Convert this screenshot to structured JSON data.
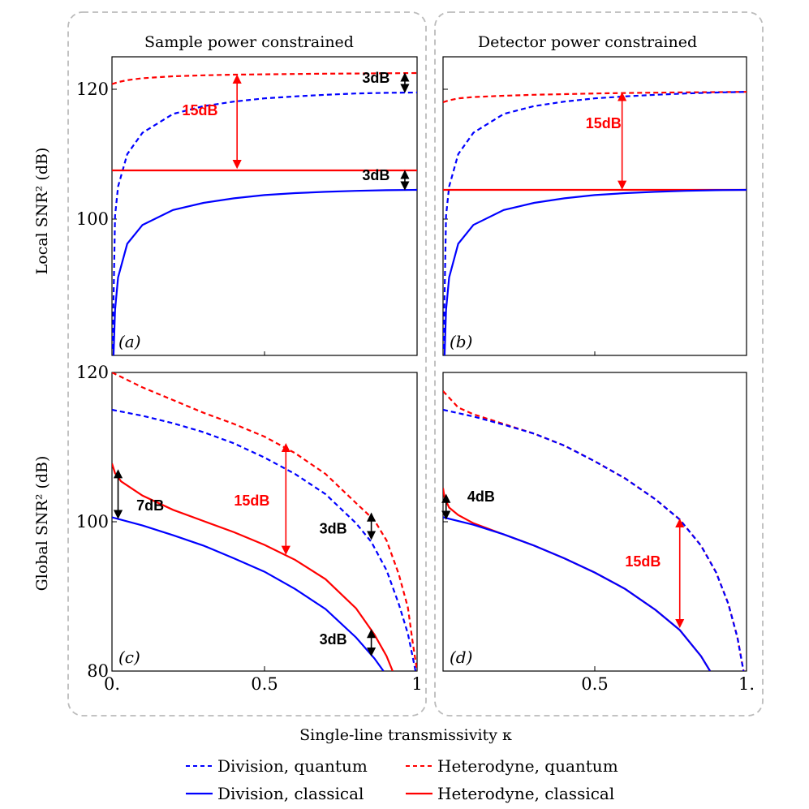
{
  "figure": {
    "column_titles": [
      "Sample power constrained",
      "Detector power constrained"
    ],
    "x_axis_label": "Single-line transmissivity κ",
    "row_labels": [
      "Local  SNR² (dB)",
      "Global  SNR² (dB)"
    ],
    "legend": [
      {
        "label": "Division, quantum",
        "color": "#0000ff",
        "dash": "dashed"
      },
      {
        "label": "Heterodyne, quantum",
        "color": "#ff0000",
        "dash": "dashed"
      },
      {
        "label": "Division, classical",
        "color": "#0000ff",
        "dash": "solid"
      },
      {
        "label": "Heterodyne, classical",
        "color": "#ff0000",
        "dash": "solid"
      }
    ],
    "colors": {
      "division": "#0000ff",
      "heterodyne": "#ff0000",
      "annotation_black": "#000000",
      "frame": "#bbbbbb"
    }
  },
  "chart_data": [
    {
      "panel": "(a)",
      "type": "line",
      "title": "Sample power constrained",
      "ylabel": "Local  SNR² (dB)",
      "xlabel": "",
      "xlim": [
        0,
        1
      ],
      "ylim": [
        79,
        125
      ],
      "xticks": [],
      "yticks": [
        100,
        120
      ],
      "ytick_labels": [
        "100",
        "120"
      ],
      "series": [
        {
          "name": "Heterodyne, quantum",
          "x": [
            0,
            0.02,
            0.05,
            0.1,
            0.2,
            0.3,
            0.4,
            0.5,
            0.6,
            0.7,
            0.8,
            0.9,
            1.0
          ],
          "y": [
            120.8,
            121.1,
            121.4,
            121.7,
            122.0,
            122.15,
            122.25,
            122.3,
            122.35,
            122.4,
            122.43,
            122.46,
            122.5
          ]
        },
        {
          "name": "Division, quantum",
          "x": [
            0.002,
            0.01,
            0.02,
            0.05,
            0.1,
            0.2,
            0.3,
            0.4,
            0.5,
            0.6,
            0.7,
            0.8,
            0.9,
            1.0
          ],
          "y": [
            80,
            100.5,
            105,
            110,
            113.3,
            116.2,
            117.4,
            118.1,
            118.6,
            118.9,
            119.15,
            119.35,
            119.45,
            119.5
          ]
        },
        {
          "name": "Heterodyne, classical",
          "x": [
            0,
            1
          ],
          "y": [
            107.5,
            107.5
          ]
        },
        {
          "name": "Division, classical",
          "x": [
            0.005,
            0.01,
            0.02,
            0.05,
            0.1,
            0.2,
            0.3,
            0.4,
            0.5,
            0.6,
            0.7,
            0.8,
            0.9,
            1.0
          ],
          "y": [
            79,
            86,
            91,
            96.2,
            99.1,
            101.4,
            102.5,
            103.2,
            103.7,
            104.0,
            104.2,
            104.35,
            104.45,
            104.5
          ]
        }
      ],
      "annotations": [
        {
          "text": "3dB",
          "color": "#000000",
          "x_text": 0.82,
          "y_text": 121,
          "arrow_x": 0.96,
          "arrow_y": [
            122.3,
            119.7
          ]
        },
        {
          "text": "15dB",
          "color": "#ff0000",
          "x_text": 0.23,
          "y_text": 116,
          "arrow_x": 0.41,
          "arrow_y": [
            122.0,
            108.0
          ]
        },
        {
          "text": "3dB",
          "color": "#000000",
          "x_text": 0.82,
          "y_text": 106,
          "arrow_x": 0.96,
          "arrow_y": [
            107.3,
            104.7
          ]
        }
      ]
    },
    {
      "panel": "(b)",
      "type": "line",
      "title": "Detector power constrained",
      "ylabel": "",
      "xlabel": "",
      "xlim": [
        0,
        1
      ],
      "ylim": [
        79,
        125
      ],
      "xticks": [],
      "yticks": [
        100,
        120
      ],
      "ytick_labels": [],
      "series": [
        {
          "name": "Heterodyne, quantum",
          "x": [
            0,
            0.02,
            0.05,
            0.1,
            0.2,
            0.3,
            0.4,
            0.5,
            0.6,
            0.7,
            0.8,
            0.9,
            1.0
          ],
          "y": [
            118.0,
            118.3,
            118.6,
            118.8,
            119.0,
            119.15,
            119.25,
            119.35,
            119.42,
            119.48,
            119.52,
            119.56,
            119.6
          ]
        },
        {
          "name": "Division, quantum",
          "x": [
            0.002,
            0.01,
            0.02,
            0.05,
            0.1,
            0.2,
            0.3,
            0.4,
            0.5,
            0.6,
            0.7,
            0.8,
            0.9,
            1.0
          ],
          "y": [
            80,
            100.5,
            105,
            110,
            113.3,
            116.2,
            117.4,
            118.1,
            118.6,
            118.9,
            119.15,
            119.35,
            119.5,
            119.6
          ]
        },
        {
          "name": "Heterodyne, classical",
          "x": [
            0,
            1
          ],
          "y": [
            104.5,
            104.5
          ]
        },
        {
          "name": "Division, classical",
          "x": [
            0.005,
            0.01,
            0.02,
            0.05,
            0.1,
            0.2,
            0.3,
            0.4,
            0.5,
            0.6,
            0.7,
            0.8,
            0.9,
            1.0
          ],
          "y": [
            79,
            86,
            91,
            96.2,
            99.1,
            101.4,
            102.5,
            103.2,
            103.7,
            104.0,
            104.2,
            104.35,
            104.45,
            104.5
          ]
        }
      ],
      "annotations": [
        {
          "text": "15dB",
          "color": "#ff0000",
          "x_text": 0.47,
          "y_text": 114,
          "arrow_x": 0.59,
          "arrow_y": [
            119.3,
            104.8
          ]
        }
      ]
    },
    {
      "panel": "(c)",
      "type": "line",
      "title": "",
      "ylabel": "Global  SNR² (dB)",
      "xlabel": "",
      "xlim": [
        0,
        1
      ],
      "ylim": [
        80,
        120
      ],
      "xticks": [
        0,
        0.5,
        1
      ],
      "xtick_labels": [
        "0.",
        "0.5",
        "1"
      ],
      "yticks": [
        80,
        100,
        120
      ],
      "ytick_labels": [
        "80",
        "100",
        "120"
      ],
      "series": [
        {
          "name": "Heterodyne, quantum",
          "x": [
            0,
            0.1,
            0.2,
            0.3,
            0.4,
            0.5,
            0.6,
            0.7,
            0.8,
            0.86,
            0.9,
            0.94,
            0.97,
            0.985,
            1.0
          ],
          "y": [
            120,
            118,
            116.3,
            114.6,
            113.1,
            111.4,
            109.2,
            106.4,
            102.5,
            100.2,
            97.5,
            93.0,
            88.5,
            84.0,
            80
          ]
        },
        {
          "name": "Division, quantum",
          "x": [
            0,
            0.1,
            0.2,
            0.3,
            0.4,
            0.5,
            0.6,
            0.7,
            0.8,
            0.85,
            0.9,
            0.94,
            0.97,
            0.985,
            0.995
          ],
          "y": [
            115,
            114.2,
            113.2,
            112,
            110.5,
            108.6,
            106.4,
            103.7,
            99.8,
            97.3,
            93.5,
            89.0,
            85.0,
            82.0,
            80
          ]
        },
        {
          "name": "Heterodyne, classical",
          "x": [
            0,
            0.01,
            0.03,
            0.1,
            0.2,
            0.3,
            0.4,
            0.5,
            0.6,
            0.7,
            0.8,
            0.86,
            0.9,
            0.92
          ],
          "y": [
            107.8,
            106.5,
            105.4,
            103.5,
            101.6,
            100.1,
            98.6,
            96.9,
            94.9,
            92.3,
            88.4,
            84.9,
            82.0,
            80
          ]
        },
        {
          "name": "Division, classical",
          "x": [
            0,
            0.1,
            0.2,
            0.3,
            0.4,
            0.5,
            0.6,
            0.7,
            0.8,
            0.86,
            0.89
          ],
          "y": [
            100.6,
            99.5,
            98.2,
            96.8,
            95.1,
            93.3,
            91.0,
            88.3,
            84.5,
            81.7,
            80
          ]
        }
      ],
      "annotations": [
        {
          "text": "7dB",
          "color": "#000000",
          "x_text": 0.08,
          "y_text": 101.5,
          "arrow_x": 0.02,
          "arrow_y": [
            106.8,
            100.6
          ]
        },
        {
          "text": "15dB",
          "color": "#ff0000",
          "x_text": 0.4,
          "y_text": 102.2,
          "arrow_x": 0.57,
          "arrow_y": [
            110.3,
            95.8
          ]
        },
        {
          "text": "3dB",
          "color": "#000000",
          "x_text": 0.68,
          "y_text": 98.4,
          "arrow_x": 0.85,
          "arrow_y": [
            101.0,
            97.8
          ]
        },
        {
          "text": "3dB",
          "color": "#000000",
          "x_text": 0.68,
          "y_text": 83.6,
          "arrow_x": 0.85,
          "arrow_y": [
            85.4,
            82.2
          ]
        }
      ]
    },
    {
      "panel": "(d)",
      "type": "line",
      "title": "",
      "ylabel": "",
      "xlabel": "",
      "xlim": [
        0,
        1
      ],
      "ylim": [
        80,
        120
      ],
      "xticks": [
        0.5,
        1
      ],
      "xtick_labels": [
        "0.5",
        "1."
      ],
      "yticks": [
        100
      ],
      "ytick_labels": [],
      "series": [
        {
          "name": "Heterodyne, quantum",
          "x": [
            0,
            0.05,
            0.1,
            0.2,
            0.3,
            0.4,
            0.5,
            0.6,
            0.7,
            0.78,
            0.85,
            0.9,
            0.94,
            0.97,
            0.99
          ],
          "y": [
            117.5,
            115.3,
            114.4,
            113.1,
            111.8,
            110.2,
            108.1,
            105.8,
            103.0,
            100.3,
            96.8,
            93.2,
            89.0,
            84.5,
            80
          ]
        },
        {
          "name": "Division, quantum",
          "x": [
            0,
            0.1,
            0.2,
            0.3,
            0.4,
            0.5,
            0.6,
            0.7,
            0.78,
            0.85,
            0.9,
            0.94,
            0.97,
            0.99
          ],
          "y": [
            115,
            114.1,
            113.0,
            111.8,
            110.2,
            108.1,
            105.8,
            103.0,
            100.3,
            96.8,
            93.2,
            89.0,
            84.5,
            80
          ]
        },
        {
          "name": "Heterodyne, classical",
          "x": [
            0,
            0.005,
            0.02,
            0.05,
            0.1,
            0.2,
            0.3,
            0.4,
            0.5,
            0.6,
            0.7,
            0.78,
            0.85,
            0.88
          ],
          "y": [
            104.5,
            103.2,
            101.9,
            100.9,
            99.8,
            98.3,
            96.8,
            95.1,
            93.2,
            91.0,
            88.2,
            85.5,
            82.0,
            80
          ]
        },
        {
          "name": "Division, classical",
          "x": [
            0,
            0.1,
            0.2,
            0.3,
            0.4,
            0.5,
            0.6,
            0.7,
            0.78,
            0.85,
            0.88
          ],
          "y": [
            100.6,
            99.6,
            98.3,
            96.8,
            95.1,
            93.2,
            91.0,
            88.2,
            85.5,
            82.0,
            80
          ]
        }
      ],
      "annotations": [
        {
          "text": "4dB",
          "color": "#000000",
          "x_text": 0.08,
          "y_text": 102.7,
          "arrow_x": 0.01,
          "arrow_y": [
            103.5,
            100.5
          ]
        },
        {
          "text": "15dB",
          "color": "#ff0000",
          "x_text": 0.6,
          "y_text": 94.0,
          "arrow_x": 0.78,
          "arrow_y": [
            100.2,
            86.0
          ]
        }
      ]
    }
  ]
}
